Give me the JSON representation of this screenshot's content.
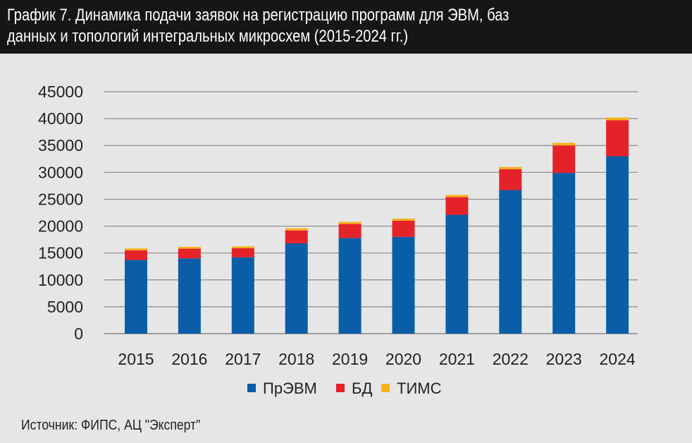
{
  "header": {
    "title_line1": "График 7. Динамика подачи заявок на регистрацию программ для ЭВМ, баз",
    "title_line2": "данных и топологий интегральных микросхем (2015-2024 гг.)"
  },
  "source": "Источник: ФИПС, АЦ \"Эксперт\"",
  "chart_data": {
    "type": "bar",
    "stacked": true,
    "title": "Динамика подачи заявок на регистрацию программ для ЭВМ, баз данных и топологий интегральных микросхем (2015-2024 гг.)",
    "categories": [
      "2015",
      "2016",
      "2017",
      "2018",
      "2019",
      "2020",
      "2021",
      "2022",
      "2023",
      "2024"
    ],
    "series": [
      {
        "name": "ПрЭВМ",
        "color": "#0a5ea8",
        "values": [
          13700,
          14000,
          14200,
          16800,
          17800,
          18000,
          22100,
          26700,
          29900,
          33000
        ]
      },
      {
        "name": "БД",
        "color": "#e5222a",
        "values": [
          1800,
          1800,
          1700,
          2400,
          2600,
          3000,
          3300,
          3900,
          5100,
          6700
        ]
      },
      {
        "name": "ТИМС",
        "color": "#f6b21a",
        "values": [
          350,
          350,
          350,
          400,
          400,
          400,
          400,
          400,
          500,
          500
        ]
      }
    ],
    "yticks": [
      "0",
      "5000",
      "10000",
      "15000",
      "20000",
      "25000",
      "30000",
      "35000",
      "40000",
      "45000"
    ],
    "ylim": [
      0,
      45000
    ],
    "xlabel": "",
    "ylabel": "",
    "grid": true,
    "legend": "bottom-center"
  }
}
